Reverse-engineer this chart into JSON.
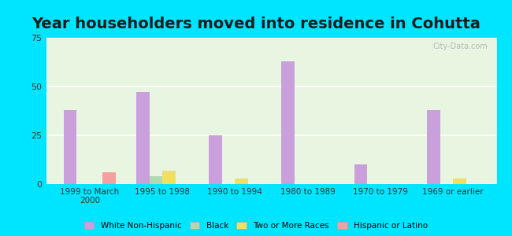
{
  "title": "Year householders moved into residence in Cohutta",
  "categories": [
    "1999 to March\n2000",
    "1995 to 1998",
    "1990 to 1994",
    "1980 to 1989",
    "1970 to 1979",
    "1969 or earlier"
  ],
  "series": {
    "White Non-Hispanic": [
      38,
      47,
      25,
      63,
      10,
      38
    ],
    "Black": [
      0,
      4,
      0,
      0,
      0,
      0
    ],
    "Two or More Races": [
      0,
      7,
      3,
      0,
      0,
      3
    ],
    "Hispanic or Latino": [
      6,
      0,
      0,
      0,
      0,
      0
    ]
  },
  "colors": {
    "White Non-Hispanic": "#c9a0dc",
    "Black": "#b2d8b2",
    "Two or More Races": "#f0e060",
    "Hispanic or Latino": "#f4a0a0"
  },
  "legend_colors": {
    "White Non-Hispanic": "#c9a0dc",
    "Black": "#b2d8b2",
    "Two or More Races": "#f0e060",
    "Hispanic or Latino": "#f4a0a0"
  },
  "ylim": [
    0,
    75
  ],
  "yticks": [
    0,
    25,
    50,
    75
  ],
  "background_outer": "#00e5ff",
  "background_plot": "#e8f5e0",
  "grid_color": "#ffffff",
  "title_fontsize": 14,
  "bar_width": 0.18
}
